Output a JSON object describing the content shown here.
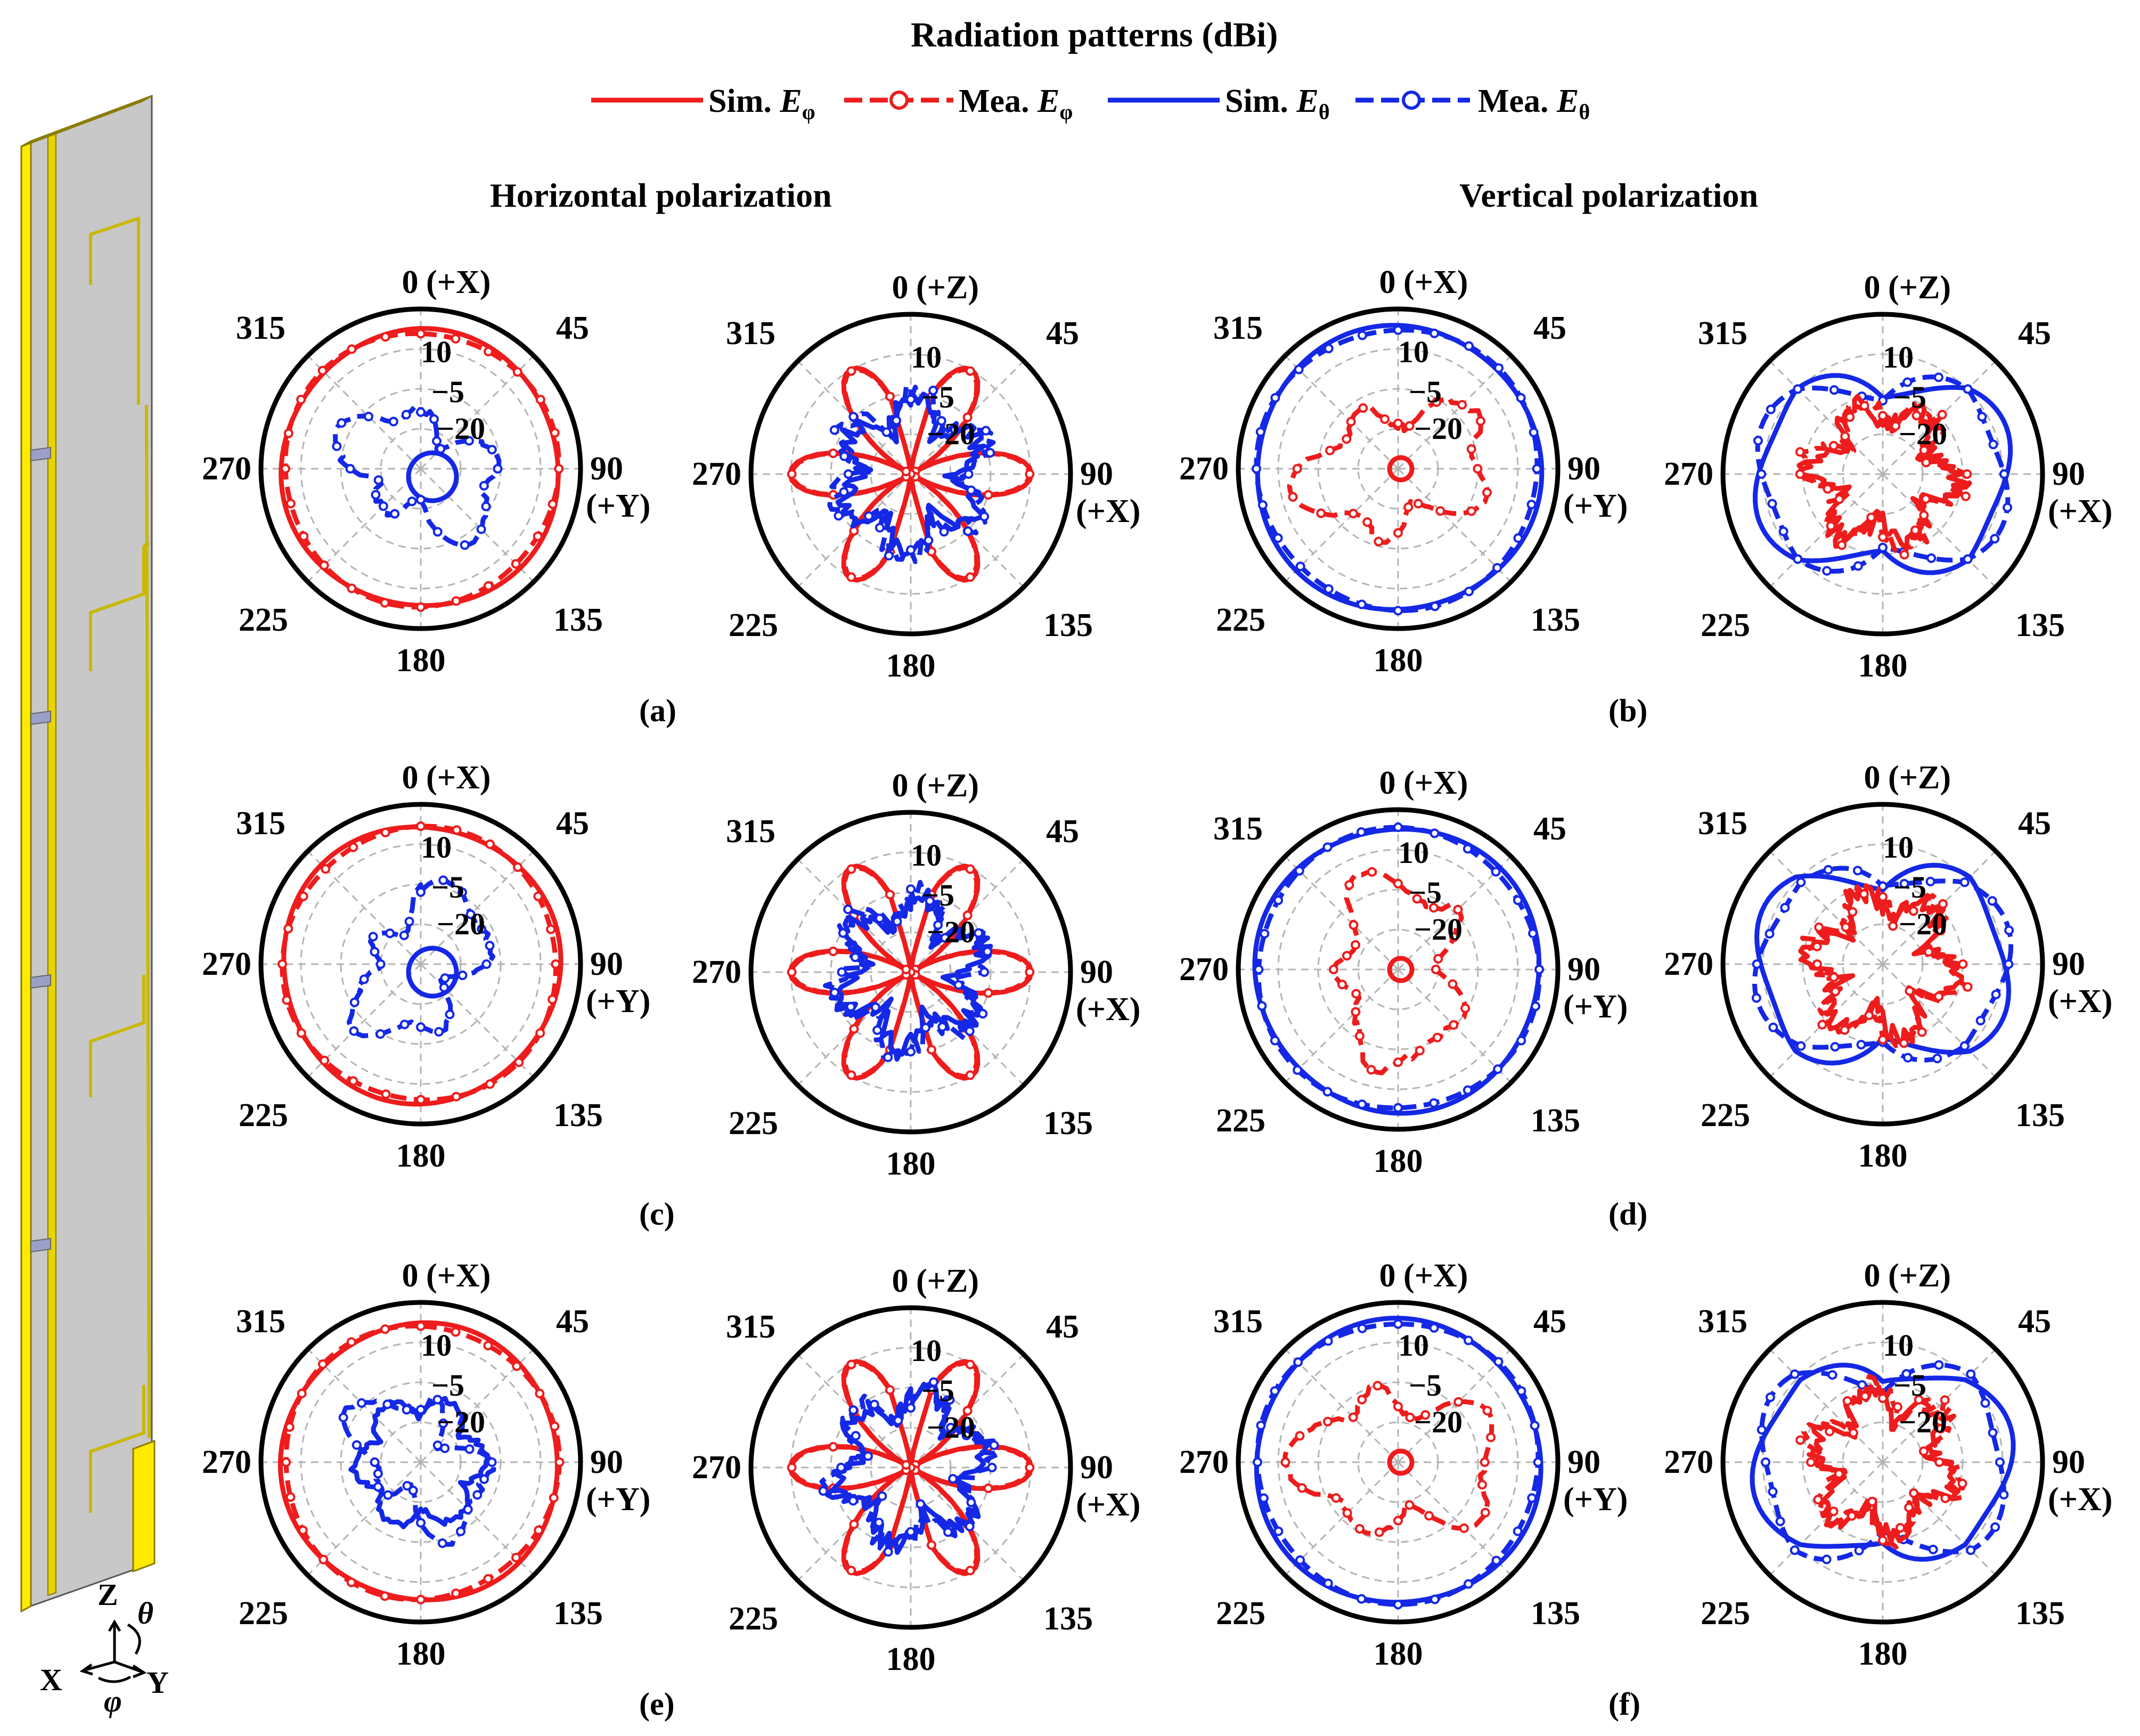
{
  "figure": {
    "title": "Radiation patterns (dBi)",
    "section_titles": {
      "left": "Horizontal polarization",
      "right": "Vertical polarization"
    },
    "legend": [
      {
        "label": "Sim. ",
        "symbol": "E",
        "sub": "φ",
        "color": "#ee1c1c",
        "style": "solid"
      },
      {
        "label": "Mea. ",
        "symbol": "E",
        "sub": "φ",
        "color": "#ee1c1c",
        "style": "dashed-circle"
      },
      {
        "label": "Sim. ",
        "symbol": "E",
        "sub": "θ",
        "color": "#1428e6",
        "style": "solid"
      },
      {
        "label": "Mea. ",
        "symbol": "E",
        "sub": "θ",
        "color": "#1428e6",
        "style": "dashed-circle"
      }
    ],
    "panel_labels": [
      "(a)",
      "(b)",
      "(c)",
      "(d)",
      "(e)",
      "(f)"
    ],
    "axes_label": {
      "z": "Z",
      "x": "X",
      "y": "Y",
      "theta": "θ",
      "phi": "φ"
    },
    "colors": {
      "red": "#ee1c1c",
      "blue": "#1428e6",
      "antenna_yellow": "#ffea00",
      "antenna_gray": "#c0c0c0"
    }
  },
  "chart_data": [
    {
      "type": "polar",
      "panel": "(a)",
      "plane": "xy",
      "top_label": "0",
      "top_axis": "(+X)",
      "right_axis": "(+Y)",
      "angle_labels": [
        "0",
        "45",
        "90",
        "135",
        "180",
        "225",
        "270",
        "315"
      ],
      "radial_ticks": [
        "10",
        "−5",
        "−20"
      ],
      "rlim": [
        -35,
        10
      ],
      "series": [
        {
          "name": "Sim. Eφ",
          "color": "#ee1c1c",
          "style": "solid",
          "pattern": "omni",
          "level": 4
        },
        {
          "name": "Mea. Eφ",
          "color": "#ee1c1c",
          "style": "dashed",
          "pattern": "omni",
          "level": 3.5
        },
        {
          "name": "Sim. Eθ",
          "color": "#1428e6",
          "style": "solid",
          "pattern": "circle-offset",
          "level": -27
        },
        {
          "name": "Mea. Eθ",
          "color": "#1428e6",
          "style": "dashed",
          "pattern": "irregular",
          "level": -18
        }
      ]
    },
    {
      "type": "polar",
      "panel": "(a)",
      "plane": "xz",
      "top_label": "0",
      "top_axis": "(+Z)",
      "right_axis": "(+X)",
      "angle_labels": [
        "0",
        "45",
        "90",
        "135",
        "180",
        "225",
        "270",
        "315"
      ],
      "radial_ticks": [
        "10",
        "−5",
        "−20"
      ],
      "rlim": [
        -35,
        10
      ],
      "series": [
        {
          "name": "Sim. Eφ",
          "color": "#ee1c1c",
          "style": "solid",
          "pattern": "six-lobe",
          "level": 3
        },
        {
          "name": "Mea. Eφ",
          "color": "#ee1c1c",
          "style": "dashed",
          "pattern": "six-lobe",
          "level": 2.5
        },
        {
          "name": "Sim. Eθ",
          "color": "#1428e6",
          "style": "solid",
          "pattern": "noisy",
          "level": -20
        },
        {
          "name": "Mea. Eθ",
          "color": "#1428e6",
          "style": "dashed",
          "pattern": "noisy",
          "level": -18
        }
      ]
    },
    {
      "type": "polar",
      "panel": "(b)",
      "plane": "xy",
      "top_label": "0",
      "top_axis": "(+X)",
      "right_axis": "(+Y)",
      "angle_labels": [
        "0",
        "45",
        "90",
        "135",
        "180",
        "225",
        "270",
        "315"
      ],
      "radial_ticks": [
        "10",
        "−5",
        "−20"
      ],
      "rlim": [
        -35,
        10
      ],
      "series": [
        {
          "name": "Sim. Eθ",
          "color": "#1428e6",
          "style": "solid",
          "pattern": "omni",
          "level": 5
        },
        {
          "name": "Mea. Eθ",
          "color": "#1428e6",
          "style": "dashed",
          "pattern": "omni",
          "level": 4.5
        },
        {
          "name": "Sim. Eφ",
          "color": "#ee1c1c",
          "style": "solid",
          "pattern": "small",
          "level": -30
        },
        {
          "name": "Mea. Eφ",
          "color": "#ee1c1c",
          "style": "dashed",
          "pattern": "irregular",
          "level": -15
        }
      ]
    },
    {
      "type": "polar",
      "panel": "(b)",
      "plane": "xz",
      "top_label": "0",
      "top_axis": "(+Z)",
      "right_axis": "(+X)",
      "angle_labels": [
        "0",
        "45",
        "90",
        "135",
        "180",
        "225",
        "270",
        "315"
      ],
      "radial_ticks": [
        "10",
        "−5",
        "−20"
      ],
      "rlim": [
        -35,
        10
      ],
      "series": [
        {
          "name": "Sim. Eθ",
          "color": "#1428e6",
          "style": "solid",
          "pattern": "wide-lobes",
          "level": 3
        },
        {
          "name": "Mea. Eθ",
          "color": "#1428e6",
          "style": "dashed",
          "pattern": "wide-lobes",
          "level": 2.5
        },
        {
          "name": "Sim. Eφ",
          "color": "#ee1c1c",
          "style": "solid",
          "pattern": "noisy",
          "level": -20
        },
        {
          "name": "Mea. Eφ",
          "color": "#ee1c1c",
          "style": "dashed",
          "pattern": "noisy",
          "level": -19
        }
      ]
    },
    {
      "type": "polar",
      "panel": "(c)",
      "plane": "xy",
      "top_label": "0",
      "top_axis": "(+X)",
      "right_axis": "(+Y)",
      "angle_labels": [
        "0",
        "45",
        "90",
        "135",
        "180",
        "225",
        "270",
        "315"
      ],
      "radial_ticks": [
        "10",
        "−5",
        "−20"
      ],
      "rlim": [
        -35,
        10
      ],
      "series": [
        {
          "name": "Sim. Eφ",
          "color": "#ee1c1c",
          "style": "solid",
          "pattern": "omni",
          "level": 4
        },
        {
          "name": "Mea. Eφ",
          "color": "#ee1c1c",
          "style": "dashed",
          "pattern": "omni",
          "level": 3.5
        },
        {
          "name": "Sim. Eθ",
          "color": "#1428e6",
          "style": "solid",
          "pattern": "circle-offset",
          "level": -27
        },
        {
          "name": "Mea. Eθ",
          "color": "#1428e6",
          "style": "dashed",
          "pattern": "irregular",
          "level": -18
        }
      ]
    },
    {
      "type": "polar",
      "panel": "(c)",
      "plane": "xz",
      "top_label": "0",
      "top_axis": "(+Z)",
      "right_axis": "(+X)",
      "angle_labels": [
        "0",
        "45",
        "90",
        "135",
        "180",
        "225",
        "270",
        "315"
      ],
      "radial_ticks": [
        "10",
        "−5",
        "−20"
      ],
      "rlim": [
        -35,
        10
      ],
      "series": [
        {
          "name": "Sim. Eφ",
          "color": "#ee1c1c",
          "style": "solid",
          "pattern": "six-lobe",
          "level": 3
        },
        {
          "name": "Mea. Eφ",
          "color": "#ee1c1c",
          "style": "dashed",
          "pattern": "six-lobe",
          "level": 2.5
        },
        {
          "name": "Sim. Eθ",
          "color": "#1428e6",
          "style": "solid",
          "pattern": "noisy",
          "level": -20
        },
        {
          "name": "Mea. Eθ",
          "color": "#1428e6",
          "style": "dashed",
          "pattern": "noisy",
          "level": -18
        }
      ]
    },
    {
      "type": "polar",
      "panel": "(d)",
      "plane": "xy",
      "top_label": "0",
      "top_axis": "(+X)",
      "right_axis": "(+Y)",
      "angle_labels": [
        "0",
        "45",
        "90",
        "135",
        "180",
        "225",
        "270",
        "315"
      ],
      "radial_ticks": [
        "10",
        "−5",
        "−20"
      ],
      "rlim": [
        -35,
        10
      ],
      "series": [
        {
          "name": "Sim. Eθ",
          "color": "#1428e6",
          "style": "solid",
          "pattern": "omni",
          "level": 5
        },
        {
          "name": "Mea. Eθ",
          "color": "#1428e6",
          "style": "dashed",
          "pattern": "omni",
          "level": 4.5
        },
        {
          "name": "Sim. Eφ",
          "color": "#ee1c1c",
          "style": "solid",
          "pattern": "small",
          "level": -31
        },
        {
          "name": "Mea. Eφ",
          "color": "#ee1c1c",
          "style": "dashed",
          "pattern": "irregular",
          "level": -15
        }
      ]
    },
    {
      "type": "polar",
      "panel": "(d)",
      "plane": "xz",
      "top_label": "0",
      "top_axis": "(+Z)",
      "right_axis": "(+X)",
      "angle_labels": [
        "0",
        "45",
        "90",
        "135",
        "180",
        "225",
        "270",
        "315"
      ],
      "radial_ticks": [
        "10",
        "−5",
        "−20"
      ],
      "rlim": [
        -35,
        10
      ],
      "series": [
        {
          "name": "Sim. Eθ",
          "color": "#1428e6",
          "style": "solid",
          "pattern": "wide-lobes",
          "level": 3
        },
        {
          "name": "Mea. Eθ",
          "color": "#1428e6",
          "style": "dashed",
          "pattern": "wide-lobes",
          "level": 2.5
        },
        {
          "name": "Sim. Eφ",
          "color": "#ee1c1c",
          "style": "solid",
          "pattern": "noisy",
          "level": -20
        },
        {
          "name": "Mea. Eφ",
          "color": "#ee1c1c",
          "style": "dashed",
          "pattern": "noisy",
          "level": -19
        }
      ]
    },
    {
      "type": "polar",
      "panel": "(e)",
      "plane": "xy",
      "top_label": "0",
      "top_axis": "(+X)",
      "right_axis": "(+Y)",
      "angle_labels": [
        "0",
        "45",
        "90",
        "135",
        "180",
        "225",
        "270",
        "315"
      ],
      "radial_ticks": [
        "10",
        "−5",
        "−20"
      ],
      "rlim": [
        -35,
        10
      ],
      "series": [
        {
          "name": "Sim. Eφ",
          "color": "#ee1c1c",
          "style": "solid",
          "pattern": "omni",
          "level": 4
        },
        {
          "name": "Mea. Eφ",
          "color": "#ee1c1c",
          "style": "dashed",
          "pattern": "omni",
          "level": 3.5
        },
        {
          "name": "Sim. Eθ",
          "color": "#1428e6",
          "style": "solid",
          "pattern": "flower",
          "level": -22
        },
        {
          "name": "Mea. Eθ",
          "color": "#1428e6",
          "style": "dashed",
          "pattern": "irregular",
          "level": -19
        }
      ]
    },
    {
      "type": "polar",
      "panel": "(e)",
      "plane": "xz",
      "top_label": "0",
      "top_axis": "(+Z)",
      "right_axis": "(+X)",
      "angle_labels": [
        "0",
        "45",
        "90",
        "135",
        "180",
        "225",
        "270",
        "315"
      ],
      "radial_ticks": [
        "10",
        "−5",
        "−20"
      ],
      "rlim": [
        -35,
        10
      ],
      "series": [
        {
          "name": "Sim. Eφ",
          "color": "#ee1c1c",
          "style": "solid",
          "pattern": "six-lobe",
          "level": 3
        },
        {
          "name": "Mea. Eφ",
          "color": "#ee1c1c",
          "style": "dashed",
          "pattern": "six-lobe",
          "level": 2.5
        },
        {
          "name": "Sim. Eθ",
          "color": "#1428e6",
          "style": "solid",
          "pattern": "noisy",
          "level": -19
        },
        {
          "name": "Mea. Eθ",
          "color": "#1428e6",
          "style": "dashed",
          "pattern": "noisy",
          "level": -18
        }
      ]
    },
    {
      "type": "polar",
      "panel": "(f)",
      "plane": "xy",
      "top_label": "0",
      "top_axis": "(+X)",
      "right_axis": "(+Y)",
      "angle_labels": [
        "0",
        "45",
        "90",
        "135",
        "180",
        "225",
        "270",
        "315"
      ],
      "radial_ticks": [
        "10",
        "−5",
        "−20"
      ],
      "rlim": [
        -35,
        10
      ],
      "series": [
        {
          "name": "Sim. Eθ",
          "color": "#1428e6",
          "style": "solid",
          "pattern": "omni",
          "level": 5
        },
        {
          "name": "Mea. Eθ",
          "color": "#1428e6",
          "style": "dashed",
          "pattern": "omni",
          "level": 4.5
        },
        {
          "name": "Sim. Eφ",
          "color": "#ee1c1c",
          "style": "solid",
          "pattern": "small",
          "level": -33
        },
        {
          "name": "Mea. Eφ",
          "color": "#ee1c1c",
          "style": "dashed",
          "pattern": "irregular",
          "level": -13
        }
      ]
    },
    {
      "type": "polar",
      "panel": "(f)",
      "plane": "xz",
      "top_label": "0",
      "top_axis": "(+Z)",
      "right_axis": "(+X)",
      "angle_labels": [
        "0",
        "45",
        "90",
        "135",
        "180",
        "225",
        "270",
        "315"
      ],
      "radial_ticks": [
        "10",
        "−5",
        "−20"
      ],
      "rlim": [
        -35,
        10
      ],
      "series": [
        {
          "name": "Sim. Eθ",
          "color": "#1428e6",
          "style": "solid",
          "pattern": "wide-lobes",
          "level": 3
        },
        {
          "name": "Mea. Eθ",
          "color": "#1428e6",
          "style": "dashed",
          "pattern": "wide-lobes",
          "level": 2.5
        },
        {
          "name": "Sim. Eφ",
          "color": "#ee1c1c",
          "style": "solid",
          "pattern": "noisy",
          "level": -20
        },
        {
          "name": "Mea. Eφ",
          "color": "#ee1c1c",
          "style": "dashed",
          "pattern": "noisy",
          "level": -19
        }
      ]
    }
  ]
}
